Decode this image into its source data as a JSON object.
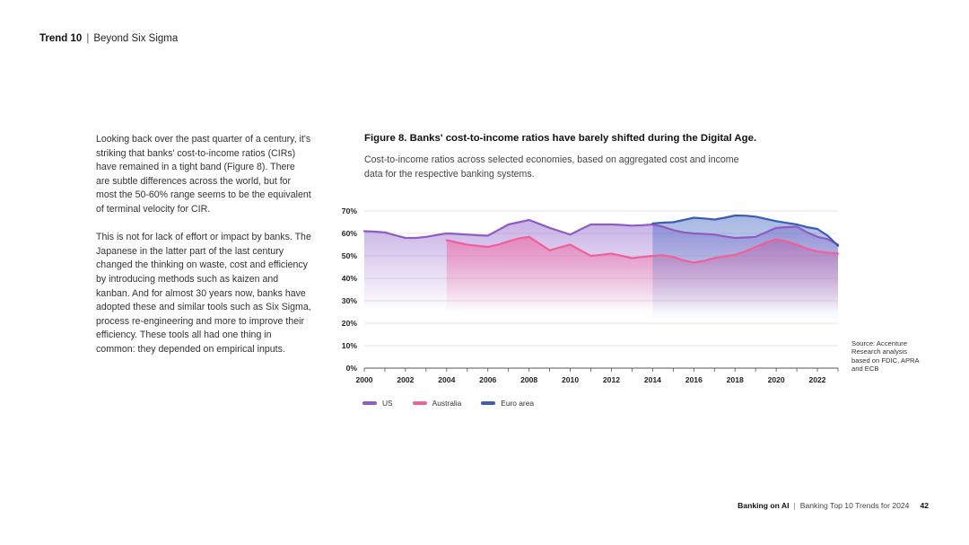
{
  "header": {
    "trend": "Trend 10",
    "separator": "|",
    "section": "Beyond Six Sigma"
  },
  "body": {
    "paragraphs": [
      "Looking back over the past quarter of a century, it's striking that banks' cost-to-income ratios (CIRs) have remained in a tight band (Figure 8). There are subtle differences across the world, but for most the 50-60% range seems to be the equivalent of terminal velocity for CIR.",
      "This is not for lack of effort or impact by banks. The Japanese in the latter part of the last century changed the thinking on waste, cost and efficiency by introducing methods such as kaizen and kanban. And for almost 30 years now, banks have adopted these and similar tools such as Six Sigma, process re-engineering and more to improve their efficiency. These tools all had one thing in common: they depended on empirical inputs."
    ]
  },
  "figure": {
    "title": "Figure 8. Banks' cost-to-income ratios have barely shifted during the Digital Age.",
    "subtitle": "Cost-to-income ratios across selected economies, based on aggregated cost and income data for the respective banking systems.",
    "source": "Source: Accenture Research analysis based on FDIC, APRA and ECB"
  },
  "chart_data": {
    "type": "area",
    "xlim": [
      2000,
      2023
    ],
    "ylim": [
      0,
      70
    ],
    "yticks": [
      0,
      10,
      20,
      30,
      40,
      50,
      60,
      70
    ],
    "ytick_labels": [
      "0%",
      "10%",
      "20%",
      "30%",
      "40%",
      "50%",
      "60%",
      "70%"
    ],
    "xticks": [
      2000,
      2002,
      2004,
      2006,
      2008,
      2010,
      2012,
      2014,
      2016,
      2018,
      2020,
      2022
    ],
    "xtick_labels": [
      "2000",
      "2002",
      "2004",
      "2006",
      "2008",
      "2010",
      "2012",
      "2014",
      "2016",
      "2018",
      "2020",
      "2022"
    ],
    "grid": true,
    "legend_position": "bottom-left",
    "series": [
      {
        "name": "US",
        "color": "#8e5cc2",
        "fill": "#9b6fd0",
        "x": [
          2000,
          2000.5,
          2001,
          2001.5,
          2002,
          2002.5,
          2003,
          2003.5,
          2004,
          2004.5,
          2005,
          2005.5,
          2006,
          2006.5,
          2007,
          2007.5,
          2008,
          2008.5,
          2009,
          2009.5,
          2010,
          2010.5,
          2011,
          2011.5,
          2012,
          2012.5,
          2013,
          2013.5,
          2014,
          2014.5,
          2015,
          2015.5,
          2016,
          2016.5,
          2017,
          2017.5,
          2018,
          2018.5,
          2019,
          2019.5,
          2020,
          2020.5,
          2021,
          2021.5,
          2022,
          2022.5,
          2023
        ],
        "values": [
          61,
          60.8,
          60.5,
          59.2,
          58,
          58,
          58.5,
          59.3,
          60,
          59.8,
          59.5,
          59.2,
          59,
          61.5,
          64,
          65,
          66,
          64.3,
          62.5,
          61,
          59.5,
          61.8,
          64,
          64,
          64,
          63.8,
          63.5,
          63.7,
          64,
          63,
          61.5,
          60.5,
          60,
          59.8,
          59.5,
          58.7,
          58,
          58.2,
          58.5,
          60.5,
          62.5,
          62.8,
          63,
          60.5,
          58.5,
          57.5,
          55
        ]
      },
      {
        "name": "Australia",
        "color": "#f0609a",
        "fill": "#f35d9a",
        "x": [
          2004,
          2004.5,
          2005,
          2005.5,
          2006,
          2006.5,
          2007,
          2007.5,
          2008,
          2008.5,
          2009,
          2009.5,
          2010,
          2010.5,
          2011,
          2011.5,
          2012,
          2012.5,
          2013,
          2013.5,
          2014,
          2014.5,
          2015,
          2015.5,
          2016,
          2016.5,
          2017,
          2017.5,
          2018,
          2018.5,
          2019,
          2019.5,
          2020,
          2020.5,
          2021,
          2021.5,
          2022,
          2022.5,
          2023
        ],
        "values": [
          57,
          56,
          55,
          54.5,
          54,
          55,
          56.5,
          57.8,
          58.5,
          55.5,
          52.5,
          53.8,
          55,
          52.5,
          50,
          50.5,
          51,
          50,
          49,
          49.5,
          50,
          50.3,
          49.5,
          48,
          47,
          47.8,
          49,
          49.8,
          50.5,
          52,
          54,
          56,
          57.5,
          56.5,
          55,
          53.2,
          52,
          51.5,
          51
        ]
      },
      {
        "name": "Euro area",
        "color": "#3c5cb4",
        "fill": "#4a6cc4",
        "x": [
          2014,
          2014.5,
          2015,
          2015.5,
          2016,
          2016.5,
          2017,
          2017.5,
          2018,
          2018.5,
          2019,
          2019.5,
          2020,
          2020.5,
          2021,
          2021.5,
          2022,
          2022.5,
          2023
        ],
        "values": [
          64.5,
          64.8,
          65,
          66,
          67,
          66.7,
          66.2,
          67,
          68,
          67.9,
          67.5,
          66.5,
          65.5,
          64.7,
          64,
          62.8,
          62,
          59,
          54.5
        ]
      }
    ]
  }
}
